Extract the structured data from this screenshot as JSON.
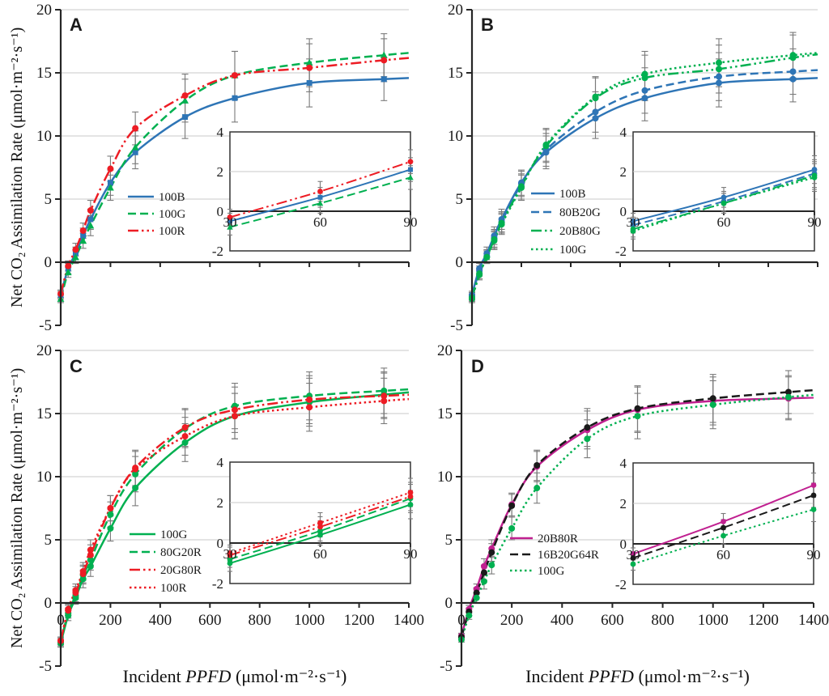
{
  "figure": {
    "ylabel": "Net CO₂ Assimilation Rate (μmol·m⁻²·s⁻¹)",
    "xlabel": {
      "pre": "Incident ",
      "em": "PPFD",
      "post": " (μmol·m⁻²·s⁻¹)"
    }
  },
  "axes": {
    "y_ticks": [
      -5,
      0,
      5,
      10,
      15,
      20
    ],
    "x_ticks": [
      0,
      200,
      400,
      600,
      800,
      1000,
      1200,
      1400
    ],
    "inset_x_ticks": [
      30,
      60,
      90
    ],
    "inset_y_ticks": [
      -2,
      0,
      2,
      4
    ],
    "grid": "horizontal-light-gray",
    "legend_position": "inside-left-middle"
  },
  "chart_data": [
    {
      "panel": "A",
      "type": "line",
      "xlim": [
        0,
        1400
      ],
      "ylim": [
        -5,
        20
      ],
      "inset": {
        "xlim": [
          30,
          90
        ],
        "ylim": [
          -2,
          4
        ]
      },
      "x": [
        0,
        30,
        60,
        90,
        120,
        200,
        300,
        500,
        700,
        1000,
        1300
      ],
      "error_bars": [
        0.3,
        0.4,
        0.5,
        0.6,
        0.8,
        1.0,
        1.3,
        1.7,
        1.9,
        1.9,
        1.7
      ],
      "series": [
        {
          "name": "100B",
          "color": "#2E75B6",
          "style": "solid",
          "marker": "square",
          "values": [
            -2.6,
            -0.5,
            0.7,
            2.1,
            3.4,
            6.3,
            8.7,
            11.5,
            13.0,
            14.2,
            14.5
          ]
        },
        {
          "name": "100G",
          "color": "#00B050",
          "style": "dashed",
          "marker": "triangle",
          "values": [
            -2.9,
            -0.8,
            0.4,
            1.7,
            2.9,
            5.9,
            9.1,
            12.8,
            14.8,
            15.8,
            16.4
          ]
        },
        {
          "name": "100R",
          "color": "#ED1C24",
          "style": "dash-dot-dot",
          "marker": "circle",
          "values": [
            -2.5,
            -0.3,
            1.0,
            2.5,
            4.1,
            7.4,
            10.6,
            13.2,
            14.8,
            15.4,
            16.0
          ]
        }
      ]
    },
    {
      "panel": "B",
      "type": "line",
      "xlim": [
        0,
        1400
      ],
      "ylim": [
        -5,
        20
      ],
      "inset": {
        "xlim": [
          30,
          90
        ],
        "ylim": [
          -2,
          4
        ]
      },
      "x": [
        0,
        30,
        60,
        90,
        120,
        200,
        300,
        500,
        700,
        1000,
        1300
      ],
      "error_bars": [
        0.3,
        0.4,
        0.5,
        0.7,
        0.8,
        1.0,
        1.3,
        1.6,
        1.8,
        1.9,
        1.8
      ],
      "series": [
        {
          "name": "100B",
          "color": "#2E75B6",
          "style": "solid",
          "marker": "circle",
          "values": [
            -2.6,
            -0.5,
            0.7,
            2.1,
            3.4,
            6.3,
            8.7,
            11.4,
            13.0,
            14.2,
            14.5
          ]
        },
        {
          "name": "80B20G",
          "color": "#2E75B6",
          "style": "dashed",
          "marker": "circle",
          "values": [
            -2.7,
            -0.7,
            0.5,
            1.9,
            3.2,
            6.2,
            8.9,
            11.9,
            13.6,
            14.7,
            15.1
          ]
        },
        {
          "name": "20B80G",
          "color": "#00B050",
          "style": "dash-dot-dot",
          "marker": "circle",
          "values": [
            -2.8,
            -0.9,
            0.4,
            1.8,
            3.1,
            6.0,
            9.2,
            13.0,
            14.6,
            15.3,
            16.2
          ]
        },
        {
          "name": "100G",
          "color": "#00B050",
          "style": "dotted",
          "marker": "circle",
          "values": [
            -2.9,
            -1.0,
            0.4,
            1.7,
            3.0,
            5.9,
            9.3,
            13.1,
            14.9,
            15.8,
            16.4
          ]
        }
      ]
    },
    {
      "panel": "C",
      "type": "line",
      "xlim": [
        0,
        1400
      ],
      "ylim": [
        -5,
        20
      ],
      "inset": {
        "xlim": [
          30,
          90
        ],
        "ylim": [
          -2,
          4
        ]
      },
      "x": [
        0,
        30,
        60,
        90,
        120,
        200,
        300,
        500,
        700,
        1000,
        1300
      ],
      "error_bars": [
        0.3,
        0.4,
        0.5,
        0.7,
        0.8,
        1.0,
        1.4,
        1.5,
        1.8,
        1.9,
        1.8
      ],
      "series": [
        {
          "name": "100G",
          "color": "#00B050",
          "style": "solid",
          "marker": "circle",
          "values": [
            -3.2,
            -1.0,
            0.4,
            1.9,
            2.9,
            5.9,
            9.1,
            12.7,
            14.8,
            15.9,
            16.5
          ]
        },
        {
          "name": "80G20R",
          "color": "#00B050",
          "style": "dashed",
          "marker": "circle",
          "values": [
            -3.1,
            -0.8,
            0.6,
            2.2,
            3.4,
            7.0,
            10.2,
            13.8,
            15.6,
            16.4,
            16.8
          ]
        },
        {
          "name": "20G80R",
          "color": "#ED1C24",
          "style": "dash-dot-dot",
          "marker": "circle",
          "values": [
            -3.0,
            -0.6,
            0.8,
            2.3,
            3.8,
            7.5,
            10.7,
            13.9,
            15.3,
            16.1,
            16.4
          ]
        },
        {
          "name": "100R",
          "color": "#ED1C24",
          "style": "dotted",
          "marker": "circle",
          "values": [
            -3.0,
            -0.5,
            1.0,
            2.5,
            4.2,
            7.5,
            10.6,
            13.2,
            14.8,
            15.5,
            16.0
          ]
        }
      ]
    },
    {
      "panel": "D",
      "type": "line",
      "xlim": [
        0,
        1400
      ],
      "ylim": [
        -5,
        20
      ],
      "inset": {
        "xlim": [
          30,
          90
        ],
        "ylim": [
          -2,
          4
        ]
      },
      "x": [
        0,
        30,
        60,
        90,
        120,
        200,
        300,
        500,
        700,
        1000,
        1300
      ],
      "error_bars": [
        0.2,
        0.3,
        0.4,
        0.6,
        0.7,
        0.9,
        1.2,
        1.5,
        1.8,
        1.9,
        1.7
      ],
      "series": [
        {
          "name": "20B80R",
          "color": "#C02090",
          "style": "solid",
          "marker": "circle",
          "values": [
            -2.6,
            -0.5,
            1.1,
            2.9,
            4.3,
            7.8,
            10.8,
            13.7,
            15.3,
            16.0,
            16.2
          ]
        },
        {
          "name": "16B20G64R",
          "color": "#1A1A1A",
          "style": "dashed",
          "marker": "circle",
          "values": [
            -2.7,
            -0.7,
            0.8,
            2.4,
            4.0,
            7.7,
            10.9,
            13.9,
            15.4,
            16.2,
            16.7
          ]
        },
        {
          "name": "100G",
          "color": "#00B050",
          "style": "dotted",
          "marker": "circle",
          "values": [
            -2.9,
            -1.0,
            0.4,
            1.7,
            3.0,
            5.9,
            9.1,
            13.0,
            14.8,
            15.7,
            16.3
          ]
        }
      ]
    }
  ]
}
